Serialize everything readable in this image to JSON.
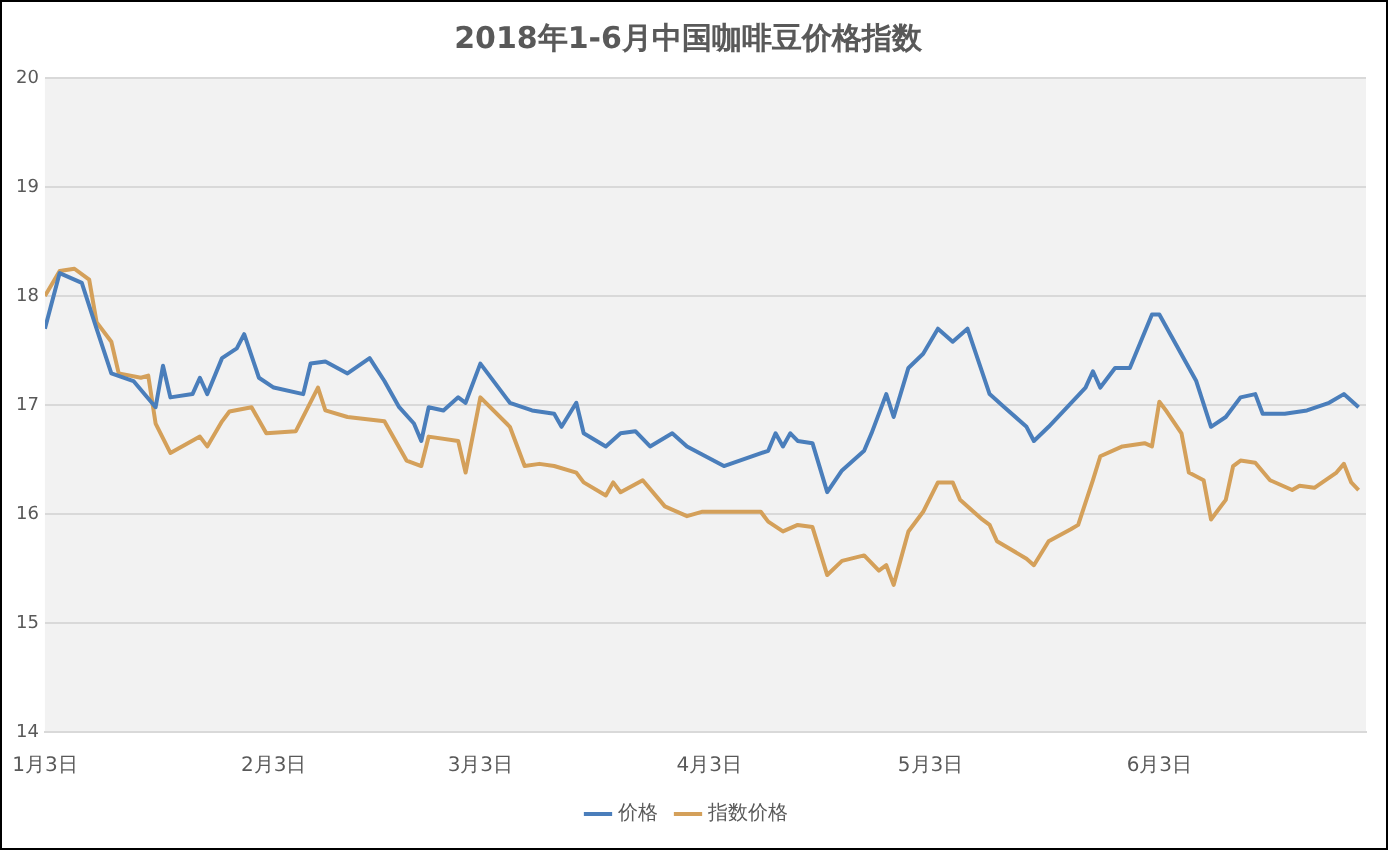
{
  "chart_data": {
    "type": "line",
    "title": "2018年1-6月中国咖啡豆价格指数",
    "xlim": [
      "2018-01-03",
      "2018-07-01"
    ],
    "xticks": [
      {
        "value": "2018-01-03",
        "label": "1月3日"
      },
      {
        "value": "2018-02-03",
        "label": "2月3日"
      },
      {
        "value": "2018-03-03",
        "label": "3月3日"
      },
      {
        "value": "2018-04-03",
        "label": "4月3日"
      },
      {
        "value": "2018-05-03",
        "label": "5月3日"
      },
      {
        "value": "2018-06-03",
        "label": "6月3日"
      }
    ],
    "ylim": [
      14,
      20
    ],
    "yticks": [
      14,
      15,
      16,
      17,
      18,
      19,
      20
    ],
    "grid": "y",
    "legend": "bottom",
    "marker": "none",
    "line_style": "solid",
    "series": [
      {
        "name": "价格",
        "color": "#4a7ebb",
        "x": [
          "2018-01-03",
          "2018-01-05",
          "2018-01-08",
          "2018-01-10",
          "2018-01-12",
          "2018-01-15",
          "2018-01-18",
          "2018-01-19",
          "2018-01-20",
          "2018-01-23",
          "2018-01-24",
          "2018-01-25",
          "2018-01-27",
          "2018-01-29",
          "2018-01-30",
          "2018-02-01",
          "2018-02-03",
          "2018-02-07",
          "2018-02-08",
          "2018-02-10",
          "2018-02-13",
          "2018-02-16",
          "2018-02-18",
          "2018-02-20",
          "2018-02-22",
          "2018-02-23",
          "2018-02-24",
          "2018-02-26",
          "2018-02-28",
          "2018-03-01",
          "2018-03-03",
          "2018-03-04",
          "2018-03-07",
          "2018-03-10",
          "2018-03-13",
          "2018-03-14",
          "2018-03-16",
          "2018-03-17",
          "2018-03-20",
          "2018-03-22",
          "2018-03-24",
          "2018-03-26",
          "2018-03-29",
          "2018-03-31",
          "2018-04-05",
          "2018-04-11",
          "2018-04-12",
          "2018-04-13",
          "2018-04-14",
          "2018-04-15",
          "2018-04-17",
          "2018-04-19",
          "2018-04-21",
          "2018-04-24",
          "2018-04-25",
          "2018-04-27",
          "2018-04-28",
          "2018-04-30",
          "2018-05-02",
          "2018-05-04",
          "2018-05-06",
          "2018-05-08",
          "2018-05-11",
          "2018-05-13",
          "2018-05-16",
          "2018-05-17",
          "2018-05-19",
          "2018-05-24",
          "2018-05-25",
          "2018-05-26",
          "2018-05-28",
          "2018-05-30",
          "2018-06-02",
          "2018-06-03",
          "2018-06-08",
          "2018-06-10",
          "2018-06-12",
          "2018-06-14",
          "2018-06-16",
          "2018-06-17",
          "2018-06-20",
          "2018-06-23",
          "2018-06-26",
          "2018-06-28",
          "2018-06-30"
        ],
        "values": [
          17.7,
          18.21,
          18.12,
          17.7,
          17.29,
          17.22,
          16.98,
          17.36,
          17.07,
          17.1,
          17.25,
          17.1,
          17.43,
          17.52,
          17.65,
          17.25,
          17.16,
          17.1,
          17.38,
          17.4,
          17.29,
          17.43,
          17.22,
          16.98,
          16.83,
          16.67,
          16.98,
          16.95,
          17.07,
          17.02,
          17.38,
          17.29,
          17.02,
          16.95,
          16.92,
          16.8,
          17.02,
          16.74,
          16.62,
          16.74,
          16.76,
          16.62,
          16.74,
          16.62,
          16.44,
          16.58,
          16.74,
          16.62,
          16.74,
          16.67,
          16.65,
          16.2,
          16.4,
          16.58,
          16.74,
          17.1,
          16.89,
          17.34,
          17.47,
          17.7,
          17.58,
          17.7,
          17.1,
          16.98,
          16.8,
          16.67,
          16.8,
          17.16,
          17.31,
          17.16,
          17.34,
          17.34,
          17.83,
          17.83,
          17.22,
          16.8,
          16.89,
          17.07,
          17.1,
          16.92,
          16.92,
          16.95,
          17.02,
          17.1,
          16.98
        ]
      },
      {
        "name": "指数价格",
        "color": "#d4a05a",
        "x": [
          "2018-01-03",
          "2018-01-05",
          "2018-01-07",
          "2018-01-09",
          "2018-01-10",
          "2018-01-12",
          "2018-01-13",
          "2018-01-16",
          "2018-01-17",
          "2018-01-18",
          "2018-01-20",
          "2018-01-24",
          "2018-01-25",
          "2018-01-27",
          "2018-01-28",
          "2018-01-31",
          "2018-02-02",
          "2018-02-06",
          "2018-02-09",
          "2018-02-10",
          "2018-02-13",
          "2018-02-18",
          "2018-02-21",
          "2018-02-23",
          "2018-02-24",
          "2018-02-28",
          "2018-03-01",
          "2018-03-03",
          "2018-03-07",
          "2018-03-09",
          "2018-03-11",
          "2018-03-13",
          "2018-03-16",
          "2018-03-17",
          "2018-03-20",
          "2018-03-21",
          "2018-03-22",
          "2018-03-25",
          "2018-03-28",
          "2018-03-31",
          "2018-04-02",
          "2018-04-10",
          "2018-04-11",
          "2018-04-13",
          "2018-04-15",
          "2018-04-17",
          "2018-04-19",
          "2018-04-21",
          "2018-04-24",
          "2018-04-26",
          "2018-04-27",
          "2018-04-28",
          "2018-04-30",
          "2018-05-02",
          "2018-05-04",
          "2018-05-06",
          "2018-05-07",
          "2018-05-10",
          "2018-05-11",
          "2018-05-12",
          "2018-05-16",
          "2018-05-17",
          "2018-05-19",
          "2018-05-22",
          "2018-05-23",
          "2018-05-25",
          "2018-05-26",
          "2018-05-29",
          "2018-06-01",
          "2018-06-02",
          "2018-06-03",
          "2018-06-04",
          "2018-06-06",
          "2018-06-07",
          "2018-06-09",
          "2018-06-10",
          "2018-06-12",
          "2018-06-13",
          "2018-06-14",
          "2018-06-16",
          "2018-06-18",
          "2018-06-21",
          "2018-06-22",
          "2018-06-24",
          "2018-06-27",
          "2018-06-28",
          "2018-06-29",
          "2018-06-30"
        ],
        "values": [
          18.0,
          18.23,
          18.25,
          18.15,
          17.76,
          17.58,
          17.29,
          17.25,
          17.27,
          16.83,
          16.56,
          16.71,
          16.62,
          16.85,
          16.94,
          16.98,
          16.74,
          16.76,
          17.16,
          16.95,
          16.89,
          16.85,
          16.49,
          16.44,
          16.71,
          16.67,
          16.38,
          17.07,
          16.8,
          16.44,
          16.46,
          16.44,
          16.38,
          16.29,
          16.17,
          16.29,
          16.2,
          16.31,
          16.07,
          15.98,
          16.02,
          16.02,
          15.93,
          15.84,
          15.9,
          15.88,
          15.44,
          15.57,
          15.62,
          15.48,
          15.53,
          15.35,
          15.84,
          16.02,
          16.29,
          16.29,
          16.13,
          15.95,
          15.9,
          15.75,
          15.59,
          15.53,
          15.75,
          15.86,
          15.9,
          16.31,
          16.53,
          16.62,
          16.65,
          16.62,
          17.03,
          16.94,
          16.74,
          16.38,
          16.31,
          15.95,
          16.13,
          16.44,
          16.49,
          16.47,
          16.31,
          16.22,
          16.26,
          16.24,
          16.38,
          16.46,
          16.29,
          16.22
        ]
      }
    ]
  }
}
